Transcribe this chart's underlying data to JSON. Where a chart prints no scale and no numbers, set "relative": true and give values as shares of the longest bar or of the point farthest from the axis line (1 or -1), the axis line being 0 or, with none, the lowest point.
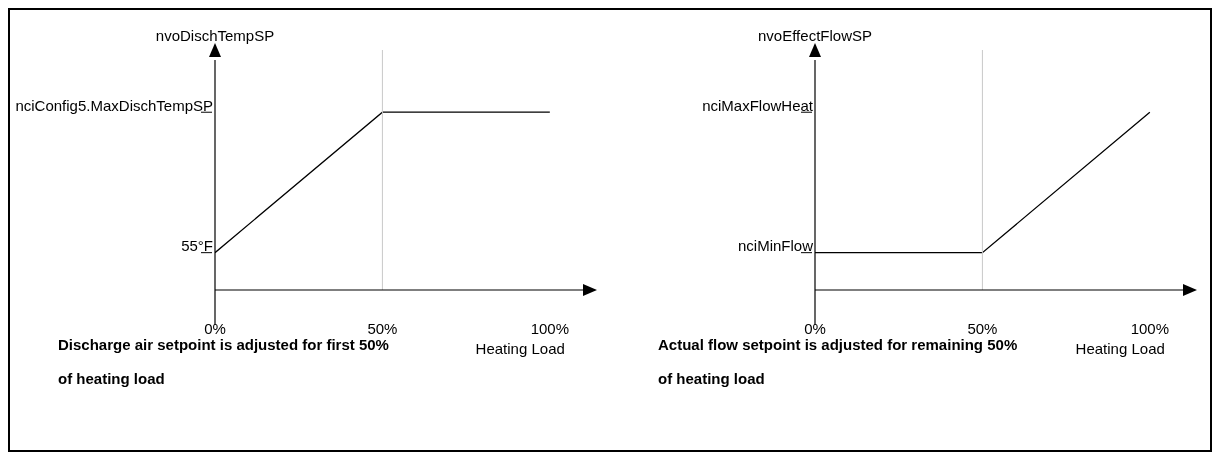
{
  "chart_data": [
    {
      "type": "line",
      "xlabel": "Heating Load",
      "ylabel": "nvoDischTempSP",
      "relative": true,
      "x": [
        0,
        50,
        100
      ],
      "values": [
        0.21,
        1,
        1
      ],
      "color": "#000000",
      "xlim": [
        0,
        112
      ],
      "xticks": [
        {
          "value": 0,
          "label": "0%"
        },
        {
          "value": 50,
          "label": "50%"
        },
        {
          "value": 100,
          "label": "100%"
        }
      ],
      "legend": false,
      "ref_lines": [
        {
          "axis": "x",
          "value": 50,
          "color": "#c8c8c8"
        }
      ],
      "annotations": [
        "55°F",
        "nciConfig5.MaxDischTempSP",
        "Discharge air setpoint is adjusted for first 50%",
        "of heating load"
      ]
    },
    {
      "type": "line",
      "xlabel": "Heating Load",
      "ylabel": "nvoEffectFlowSP",
      "relative": true,
      "x": [
        0,
        50,
        100
      ],
      "values": [
        0.21,
        0.21,
        1
      ],
      "color": "#000000",
      "xlim": [
        0,
        112
      ],
      "xticks": [
        {
          "value": 0,
          "label": "0%"
        },
        {
          "value": 50,
          "label": "50%"
        },
        {
          "value": 100,
          "label": "100%"
        }
      ],
      "legend": false,
      "ref_lines": [
        {
          "axis": "x",
          "value": 50,
          "color": "#c8c8c8"
        }
      ],
      "annotations": [
        "nciMinFlow",
        "nciMaxFlowHeat",
        "Actual flow setpoint is adjusted for remaining 50%",
        "of heating load"
      ]
    }
  ]
}
